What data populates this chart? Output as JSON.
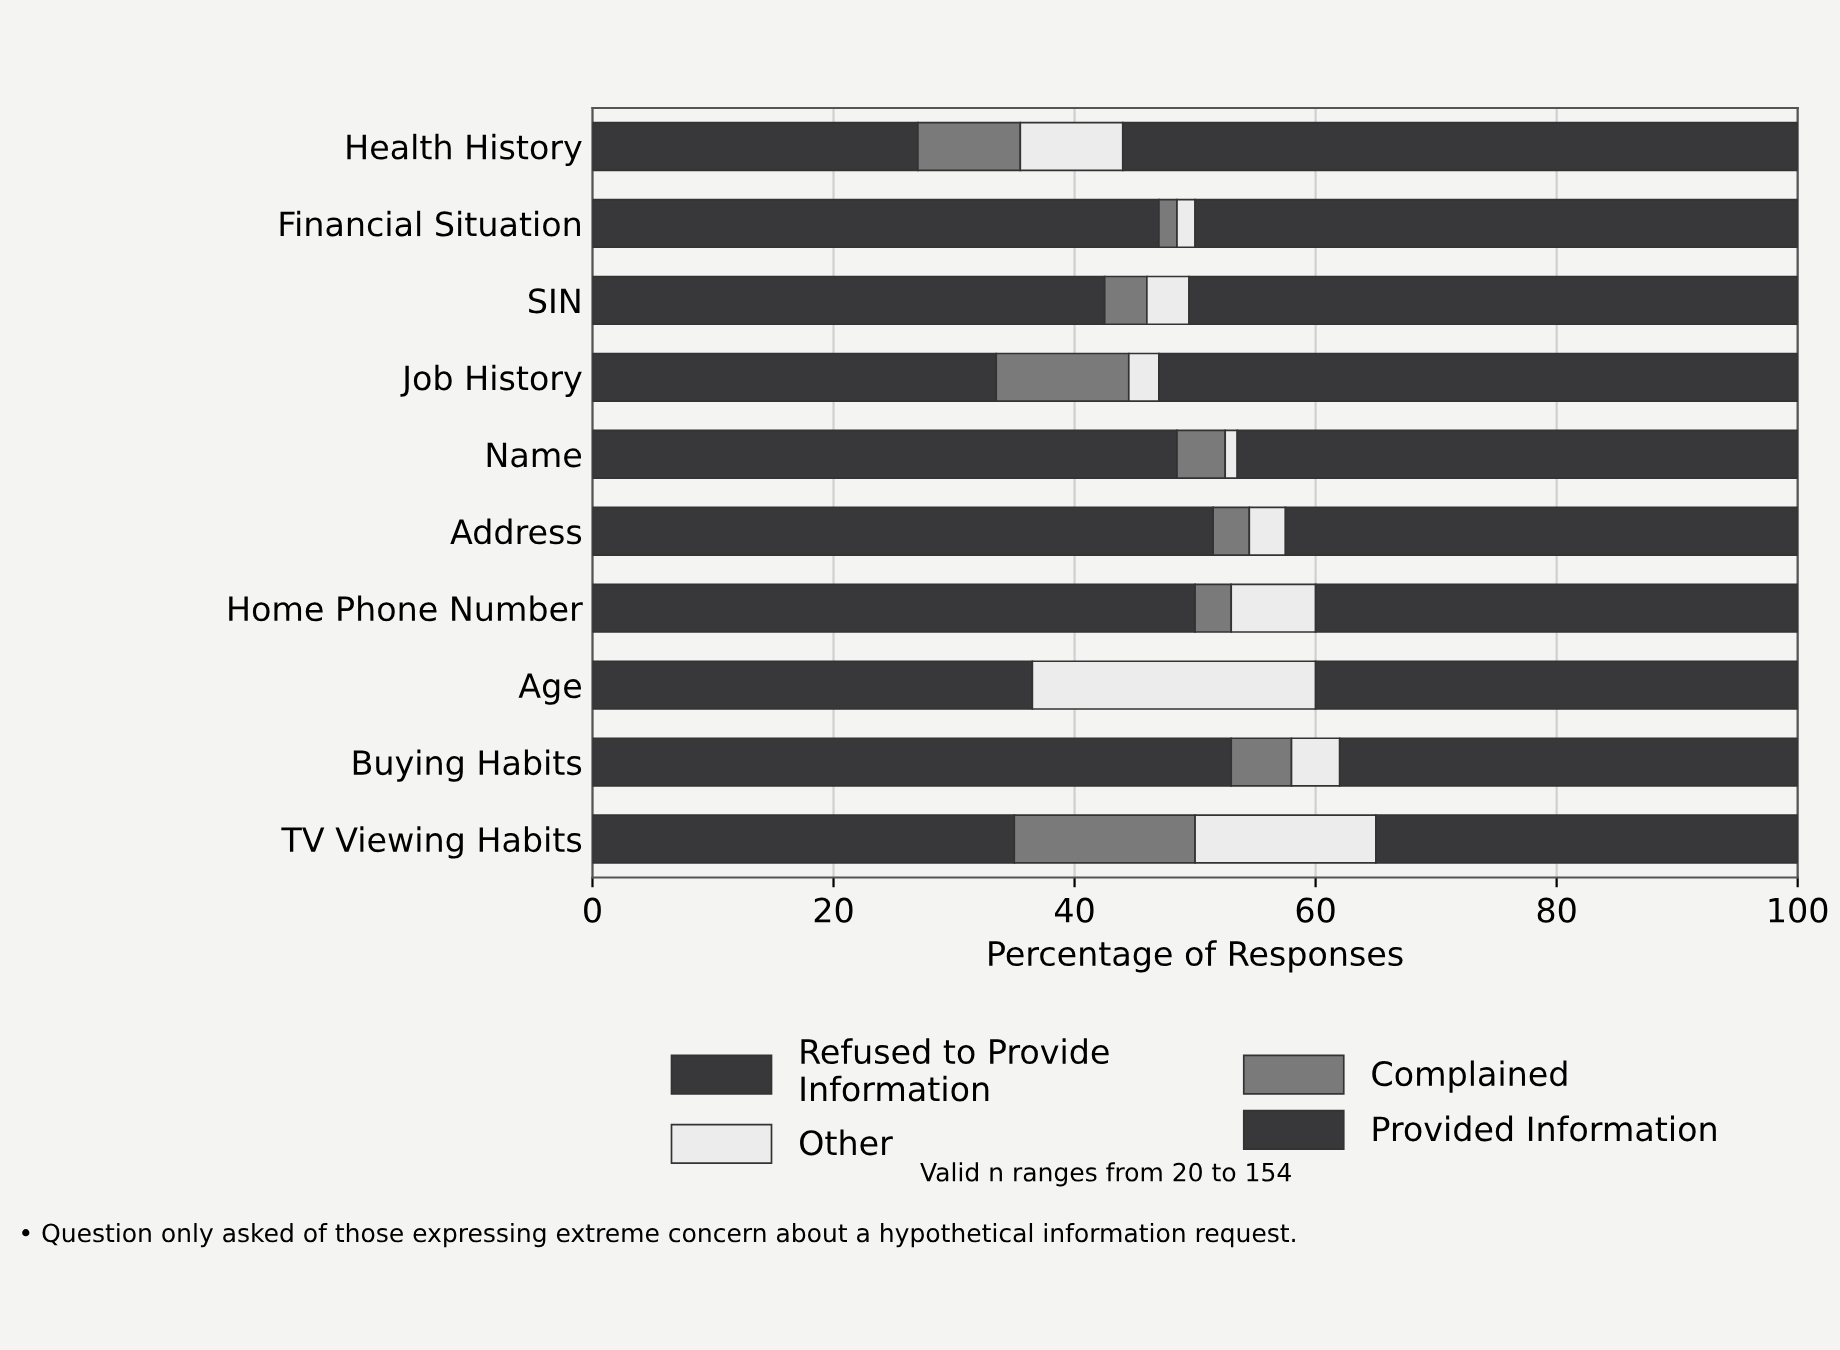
{
  "chart_data": {
    "type": "bar",
    "orientation": "horizontal",
    "stacked": true,
    "categories": [
      "Health History",
      "Financial Situation",
      "SIN",
      "Job History",
      "Name",
      "Address",
      "Home Phone Number",
      "Age",
      "Buying Habits",
      "TV Viewing Habits"
    ],
    "series": [
      {
        "name": "Refused to Provide\nInformation",
        "color": "#38383a",
        "values": [
          27,
          47,
          42.5,
          33.5,
          48.5,
          51.5,
          50,
          36.5,
          53,
          35
        ]
      },
      {
        "name": "Complained",
        "color": "#7a7a7a",
        "values": [
          8.5,
          1.5,
          3.5,
          11,
          4,
          3,
          3,
          0,
          5,
          15
        ]
      },
      {
        "name": "Other",
        "color": "#ececec",
        "values": [
          8.5,
          1.5,
          3.5,
          2.5,
          1,
          3,
          7,
          23.5,
          4,
          15
        ]
      },
      {
        "name": "Provided Information",
        "color": "#38383a",
        "values": [
          56,
          50,
          50.5,
          53,
          46.5,
          42.5,
          40,
          40,
          38,
          35
        ]
      }
    ],
    "xlim": [
      0,
      100
    ],
    "xticks": [
      0,
      20,
      40,
      60,
      80,
      100
    ],
    "xlabel": "Percentage of Responses",
    "grid": "x",
    "legend": "bottom",
    "annotations": [
      "Valid n ranges from 20 to 154",
      "• Question only asked of those expressing extreme concern about a hypothetical information request."
    ]
  }
}
